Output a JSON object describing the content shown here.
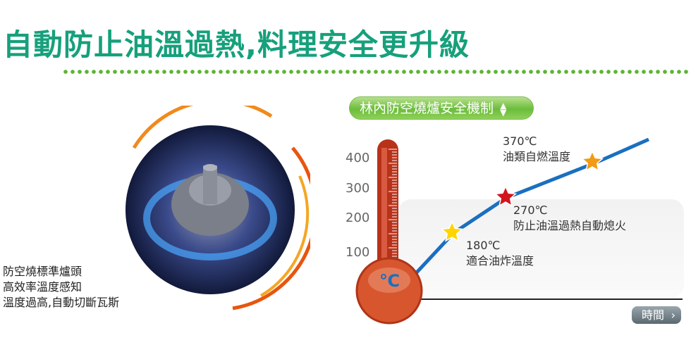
{
  "title": "自動防止油溫過熱,料理安全更升級",
  "caption": [
    "防空燒標準爐頭",
    "高效率溫度感知",
    "溫度過高,自動切斷瓦斯"
  ],
  "pill": {
    "label": "林內防空燒爐安全機制",
    "icon": "up-down-arrows-icon"
  },
  "thermometer_unit": "℃",
  "time_button": {
    "label": "時間",
    "icon": "chevron-right-icon"
  },
  "colors": {
    "title": "#16a07c",
    "line": "#1a6fc0",
    "thermometer": "#c0361c",
    "pill": "#6bbd3a"
  },
  "chart_data": {
    "type": "line",
    "xlabel": "時間",
    "ylabel": "℃",
    "yticks": [
      100,
      200,
      300,
      400
    ],
    "annotations": [
      {
        "value": "180℃",
        "text": "適合油炸溫度",
        "star_color": "#ffd400"
      },
      {
        "value": "270℃",
        "text": "防止油溫過熱自動熄火",
        "star_color": "#d2141e"
      },
      {
        "value": "370℃",
        "text": "油類自燃溫度",
        "star_color": "#f39a12"
      }
    ]
  }
}
